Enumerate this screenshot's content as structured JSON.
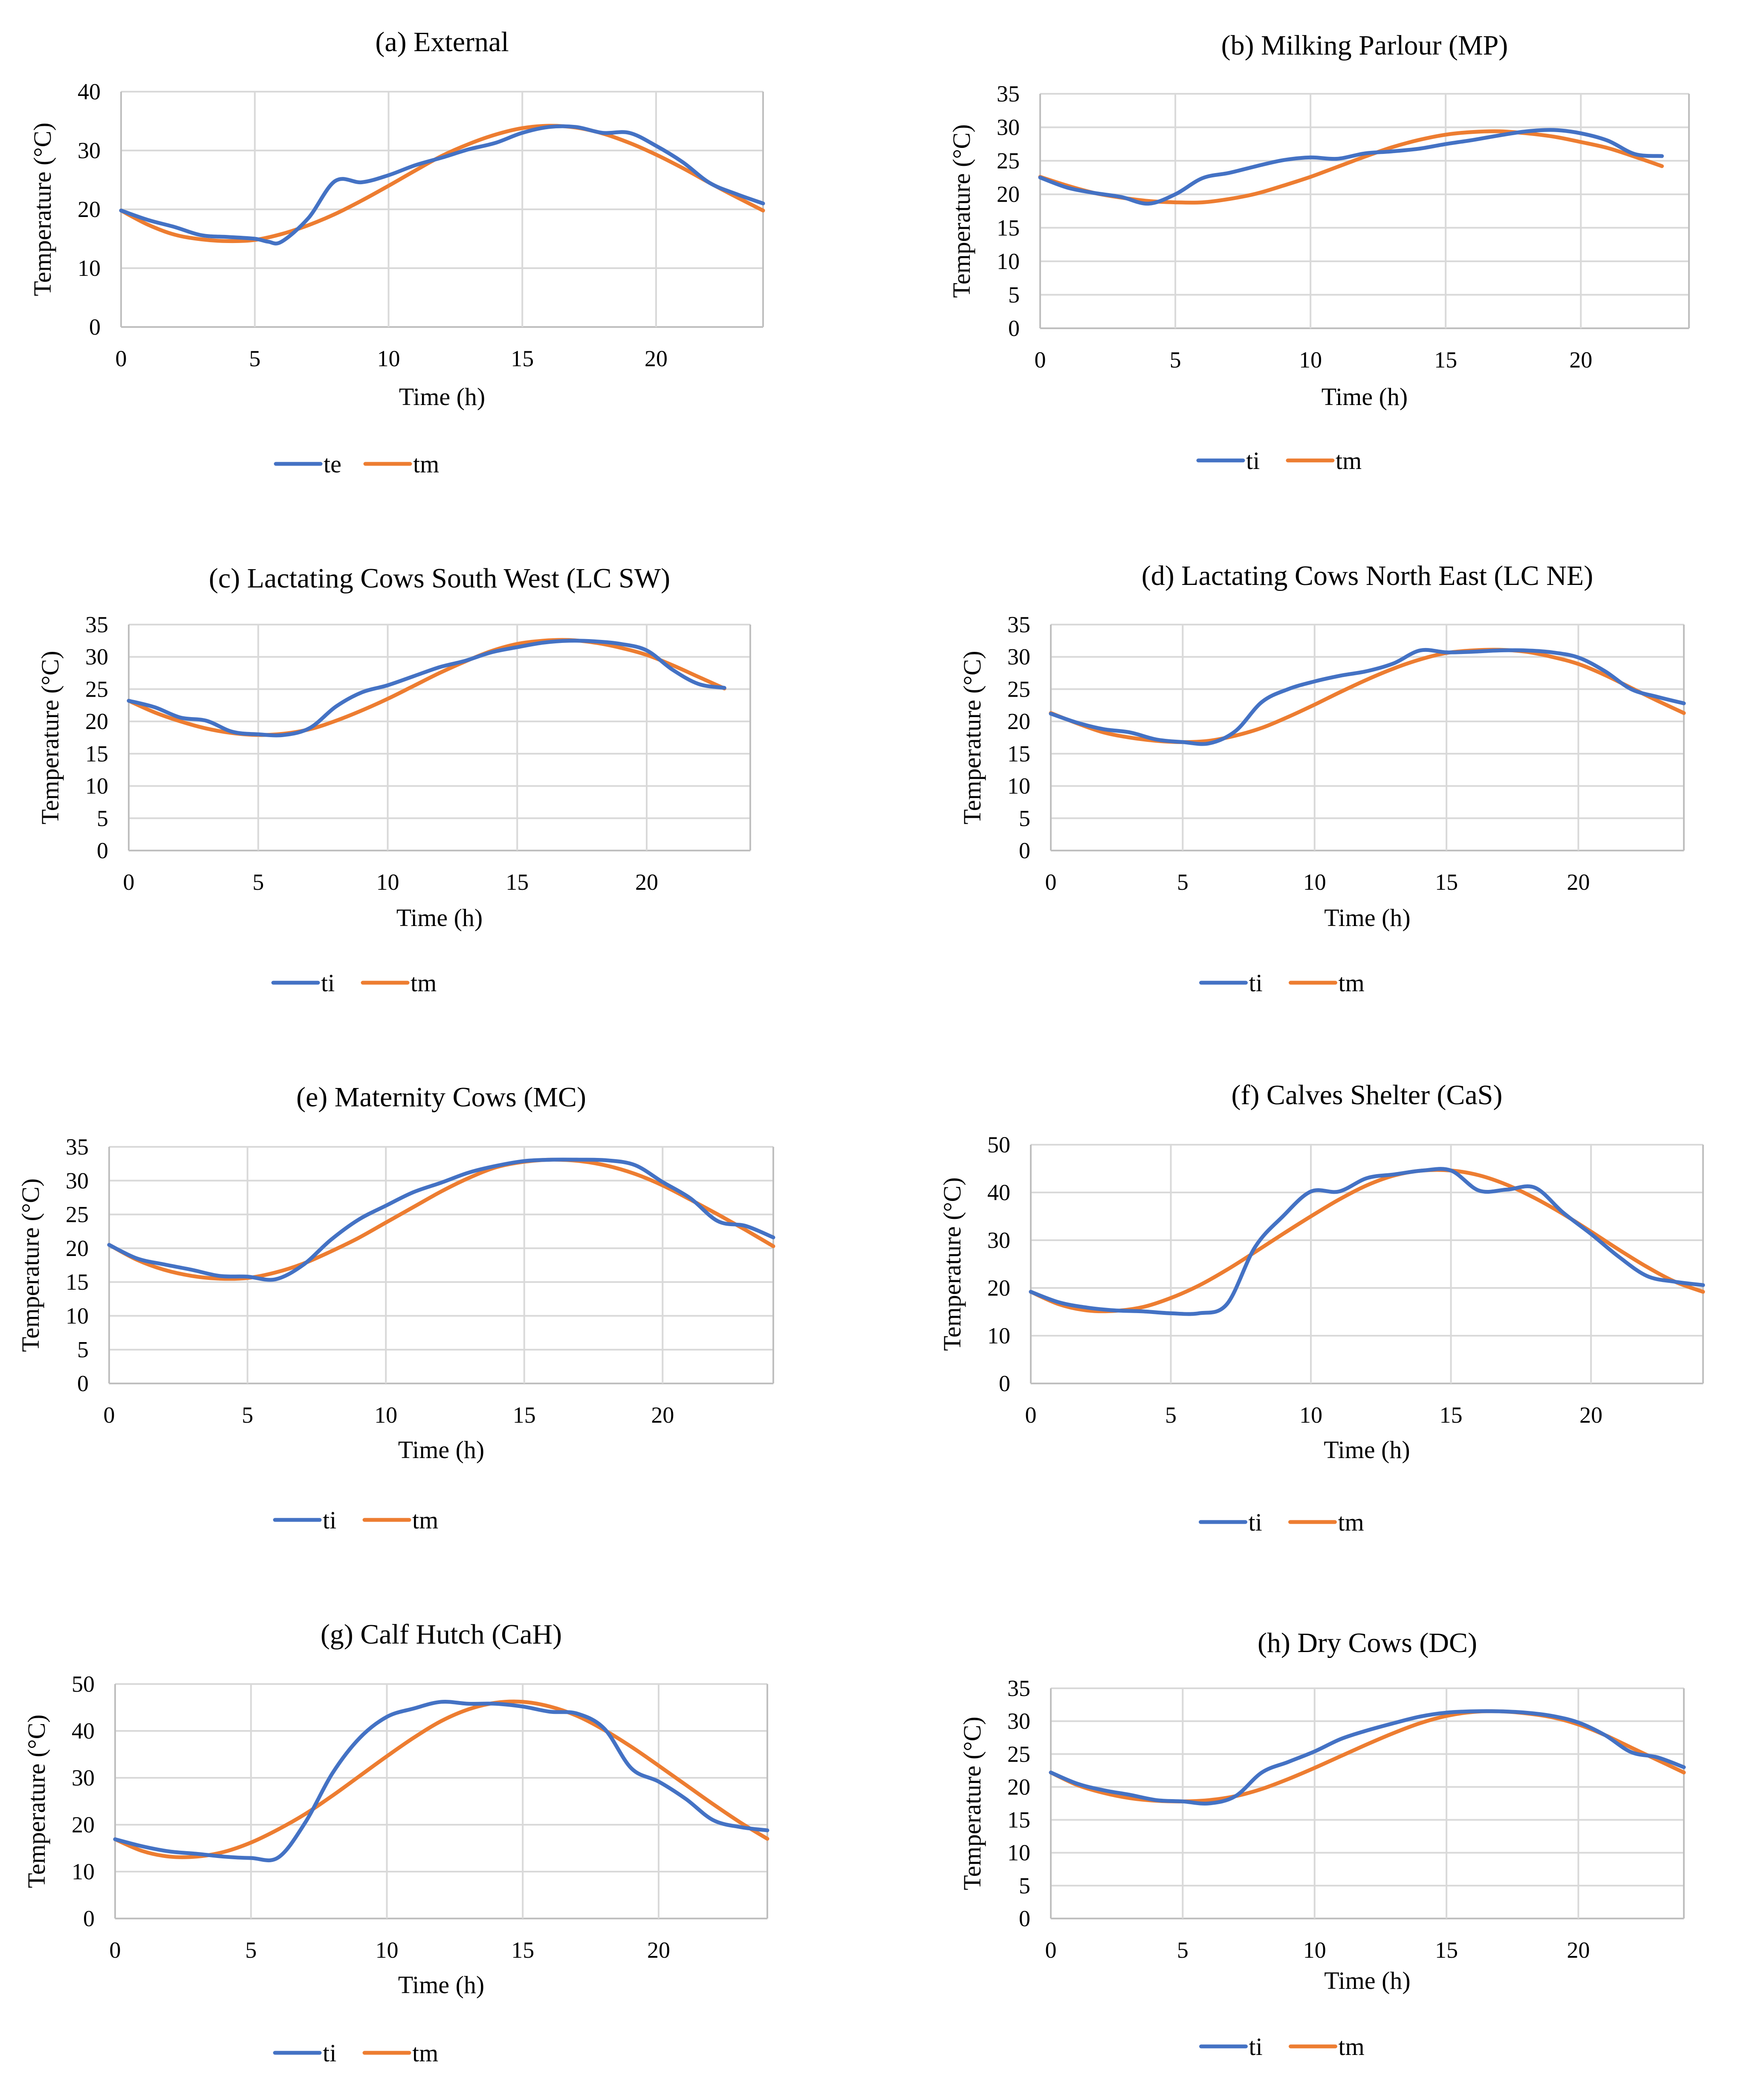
{
  "colors": {
    "blue": "#4472C4",
    "orange": "#ED7D31"
  },
  "chart_data": [
    {
      "id": "a",
      "type": "line",
      "title": "(a) External",
      "xlabel": "Time (h)",
      "ylabel": "Temperature (°C)",
      "xlim": [
        0,
        24
      ],
      "ylim": [
        0,
        40
      ],
      "xticks": [
        0,
        5,
        10,
        15,
        20
      ],
      "yticks": [
        0,
        10,
        20,
        30,
        40
      ],
      "series": [
        {
          "name": "te",
          "color": "#4472C4",
          "x": [
            0,
            1,
            2,
            3,
            4,
            5,
            5.5,
            6,
            7,
            8,
            9,
            10,
            11,
            12,
            13,
            14,
            15,
            16,
            17,
            18,
            19,
            20,
            21,
            22,
            23,
            24
          ],
          "y": [
            19.8,
            18.2,
            17,
            15.6,
            15.3,
            15,
            14.5,
            14.5,
            18.5,
            24.8,
            24.6,
            25.8,
            27.5,
            28.8,
            30.2,
            31.3,
            33,
            34,
            34,
            33,
            33,
            30.8,
            28,
            24.5,
            22.6,
            21
          ]
        },
        {
          "name": "tm",
          "color": "#ED7D31",
          "x": [
            0,
            1,
            2,
            3,
            4,
            5,
            6,
            7,
            8,
            9,
            10,
            11,
            12,
            13,
            14,
            15,
            16,
            17,
            18,
            19,
            20,
            21,
            22,
            23,
            24
          ],
          "y": [
            19.8,
            17.4,
            15.7,
            14.9,
            14.6,
            14.8,
            15.8,
            17.3,
            19.2,
            21.5,
            24,
            26.6,
            29.1,
            31.1,
            32.7,
            33.8,
            34.2,
            33.9,
            32.9,
            31.3,
            29.3,
            27,
            24.5,
            22.1,
            19.8
          ]
        }
      ]
    },
    {
      "id": "b",
      "type": "line",
      "title": "(b) Milking Parlour (MP)",
      "xlabel": "Time (h)",
      "ylabel": "Temperature (°C)",
      "xlim": [
        0,
        24
      ],
      "ylim": [
        0,
        35
      ],
      "xticks": [
        0,
        5,
        10,
        15,
        20
      ],
      "yticks": [
        0,
        5,
        10,
        15,
        20,
        25,
        30,
        35
      ],
      "series": [
        {
          "name": "ti",
          "color": "#4472C4",
          "x": [
            0,
            1,
            2,
            3,
            4,
            5,
            6,
            7,
            8,
            9,
            10,
            11,
            12,
            13,
            14,
            15,
            16,
            17,
            18,
            19,
            20,
            21,
            22,
            23
          ],
          "y": [
            22.5,
            21,
            20.2,
            19.6,
            18.6,
            20,
            22.4,
            23.2,
            24.2,
            25.1,
            25.5,
            25.3,
            26.1,
            26.4,
            26.8,
            27.5,
            28.1,
            28.8,
            29.4,
            29.6,
            29.1,
            28,
            26,
            25.7
          ]
        },
        {
          "name": "tm",
          "color": "#ED7D31",
          "x": [
            0,
            1,
            2,
            3,
            4,
            5,
            6,
            7,
            8,
            9,
            10,
            11,
            12,
            13,
            14,
            15,
            16,
            17,
            18,
            19,
            20,
            21,
            22,
            23
          ],
          "y": [
            22.6,
            21.3,
            20.2,
            19.5,
            19,
            18.8,
            18.8,
            19.3,
            20.1,
            21.3,
            22.6,
            24.1,
            25.6,
            27,
            28.1,
            28.9,
            29.3,
            29.4,
            29.1,
            28.6,
            27.8,
            26.9,
            25.6,
            24.2
          ]
        }
      ]
    },
    {
      "id": "c",
      "type": "line",
      "title": "(c) Lactating Cows South West (LC SW)",
      "xlabel": "Time (h)",
      "ylabel": "Temperature (°C)",
      "xlim": [
        0,
        24
      ],
      "ylim": [
        0,
        35
      ],
      "xticks": [
        0,
        5,
        10,
        15,
        20
      ],
      "yticks": [
        0,
        5,
        10,
        15,
        20,
        25,
        30,
        35
      ],
      "series": [
        {
          "name": "ti",
          "color": "#4472C4",
          "x": [
            0,
            1,
            2,
            3,
            4,
            5,
            6,
            7,
            8,
            9,
            10,
            11,
            12,
            13,
            14,
            15,
            16,
            17,
            18,
            19,
            20,
            21,
            22,
            23
          ],
          "y": [
            23.2,
            22.2,
            20.6,
            20.1,
            18.4,
            18,
            17.9,
            19,
            22.3,
            24.5,
            25.6,
            27,
            28.4,
            29.4,
            30.7,
            31.5,
            32.2,
            32.5,
            32.4,
            32,
            31,
            28,
            25.8,
            25.2
          ]
        },
        {
          "name": "tm",
          "color": "#ED7D31",
          "x": [
            0,
            1,
            2,
            3,
            4,
            5,
            6,
            7,
            8,
            9,
            10,
            11,
            12,
            13,
            14,
            15,
            16,
            17,
            18,
            19,
            20,
            21,
            22,
            23
          ],
          "y": [
            23.2,
            21.4,
            20,
            18.9,
            18.2,
            17.9,
            18.1,
            18.8,
            20.1,
            21.7,
            23.5,
            25.5,
            27.5,
            29.3,
            30.9,
            32,
            32.5,
            32.6,
            32.2,
            31.4,
            30.3,
            28.7,
            26.9,
            25.1
          ]
        }
      ]
    },
    {
      "id": "d",
      "type": "line",
      "title": "(d) Lactating Cows North East (LC NE)",
      "xlabel": "Time (h)",
      "ylabel": "Temperature (°C)",
      "xlim": [
        0,
        24
      ],
      "ylim": [
        0,
        35
      ],
      "xticks": [
        0,
        5,
        10,
        15,
        20
      ],
      "yticks": [
        0,
        5,
        10,
        15,
        20,
        25,
        30,
        35
      ],
      "series": [
        {
          "name": "ti",
          "color": "#4472C4",
          "x": [
            0,
            1,
            2,
            3,
            4,
            5,
            6,
            7,
            8,
            9,
            10,
            11,
            12,
            13,
            14,
            15,
            16,
            17,
            18,
            19,
            20,
            21,
            22,
            23,
            24
          ],
          "y": [
            21.2,
            19.8,
            18.8,
            18.3,
            17.2,
            16.8,
            16.6,
            18.5,
            23,
            25,
            26.2,
            27.1,
            27.8,
            29,
            31,
            30.7,
            30.8,
            31,
            31,
            30.7,
            29.9,
            27.8,
            25,
            23.8,
            22.8
          ]
        },
        {
          "name": "tm",
          "color": "#ED7D31",
          "x": [
            0,
            1,
            2,
            3,
            4,
            5,
            6,
            7,
            8,
            9,
            10,
            11,
            12,
            13,
            14,
            15,
            16,
            17,
            18,
            19,
            20,
            21,
            22,
            23,
            24
          ],
          "y": [
            21.3,
            19.7,
            18.3,
            17.5,
            17,
            16.8,
            17,
            17.8,
            19,
            20.7,
            22.6,
            24.6,
            26.5,
            28.2,
            29.6,
            30.6,
            31,
            31.1,
            30.8,
            30,
            28.9,
            27.2,
            25.2,
            23.2,
            21.3
          ]
        }
      ]
    },
    {
      "id": "e",
      "type": "line",
      "title": "(e) Maternity Cows (MC)",
      "xlabel": "Time (h)",
      "ylabel": "Temperature (°C)",
      "xlim": [
        0,
        24
      ],
      "ylim": [
        0,
        35
      ],
      "xticks": [
        0,
        5,
        10,
        15,
        20
      ],
      "yticks": [
        0,
        5,
        10,
        15,
        20,
        25,
        30,
        35
      ],
      "series": [
        {
          "name": "ti",
          "color": "#4472C4",
          "x": [
            0,
            1,
            2,
            3,
            4,
            5,
            6,
            7,
            8,
            9,
            10,
            11,
            12,
            13,
            14,
            15,
            16,
            17,
            18,
            19,
            20,
            21,
            22,
            23,
            24
          ],
          "y": [
            20.5,
            18.5,
            17.6,
            16.8,
            15.9,
            15.8,
            15.4,
            17.5,
            21.2,
            24.2,
            26.3,
            28.3,
            29.7,
            31.2,
            32.2,
            32.9,
            33.1,
            33.1,
            33,
            32.3,
            29.8,
            27.4,
            24,
            23.3,
            21.6
          ]
        },
        {
          "name": "tm",
          "color": "#ED7D31",
          "x": [
            0,
            1,
            2,
            3,
            4,
            5,
            6,
            7,
            8,
            9,
            10,
            11,
            12,
            13,
            14,
            15,
            16,
            17,
            18,
            19,
            20,
            21,
            22,
            23,
            24
          ],
          "y": [
            20.5,
            18.3,
            16.8,
            15.9,
            15.5,
            15.6,
            16.4,
            17.7,
            19.5,
            21.5,
            23.8,
            26.1,
            28.4,
            30.4,
            32,
            32.8,
            33.1,
            32.9,
            32.2,
            31,
            29.3,
            27.2,
            25,
            22.7,
            20.3
          ]
        }
      ]
    },
    {
      "id": "f",
      "type": "line",
      "title": "(f) Calves Shelter (CaS)",
      "xlabel": "Time (h)",
      "ylabel": "Temperature (°C)",
      "xlim": [
        0,
        24
      ],
      "ylim": [
        0,
        50
      ],
      "xticks": [
        0,
        5,
        10,
        15,
        20
      ],
      "yticks": [
        0,
        10,
        20,
        30,
        40,
        50
      ],
      "series": [
        {
          "name": "ti",
          "color": "#4472C4",
          "x": [
            0,
            1,
            2,
            3,
            4,
            5,
            6,
            7,
            8,
            9,
            10,
            11,
            12,
            13,
            14,
            15,
            16,
            17,
            18,
            19,
            20,
            21,
            22,
            23,
            24
          ],
          "y": [
            19.2,
            17,
            15.9,
            15.3,
            15.1,
            14.7,
            14.7,
            16.6,
            28.5,
            35,
            40.2,
            40.2,
            43,
            43.8,
            44.6,
            44.6,
            40.4,
            40.6,
            41,
            35.8,
            31.3,
            26.5,
            22.5,
            21.3,
            20.6
          ]
        },
        {
          "name": "tm",
          "color": "#ED7D31",
          "x": [
            0,
            1,
            2,
            3,
            4,
            5,
            6,
            7,
            8,
            9,
            10,
            11,
            12,
            13,
            14,
            15,
            16,
            17,
            18,
            19,
            20,
            21,
            22,
            23,
            24
          ],
          "y": [
            19.2,
            16.6,
            15.3,
            15.2,
            16,
            17.9,
            20.5,
            23.8,
            27.5,
            31.3,
            35,
            38.5,
            41.5,
            43.6,
            44.6,
            44.6,
            43.6,
            41.6,
            38.8,
            35.5,
            31.8,
            28,
            24.4,
            21.3,
            19.2
          ]
        }
      ]
    },
    {
      "id": "g",
      "type": "line",
      "title": "(g) Calf Hutch (CaH)",
      "xlabel": "Time (h)",
      "ylabel": "Temperature (°C)",
      "xlim": [
        0,
        24
      ],
      "ylim": [
        0,
        50
      ],
      "xticks": [
        0,
        5,
        10,
        15,
        20
      ],
      "yticks": [
        0,
        10,
        20,
        30,
        40,
        50
      ],
      "series": [
        {
          "name": "ti",
          "color": "#4472C4",
          "x": [
            0,
            1,
            2,
            3,
            4,
            5,
            6,
            7,
            8,
            9,
            10,
            11,
            12,
            13,
            14,
            15,
            16,
            17,
            18,
            19,
            20,
            21,
            22,
            23,
            24
          ],
          "y": [
            16.9,
            15.4,
            14.3,
            13.8,
            13.2,
            12.9,
            13,
            20.5,
            31,
            38.5,
            43,
            44.8,
            46.2,
            45.8,
            45.8,
            45.2,
            44.1,
            43.7,
            40.5,
            32,
            29.2,
            25.5,
            21,
            19.5,
            18.8
          ]
        },
        {
          "name": "tm",
          "color": "#ED7D31",
          "x": [
            0,
            1,
            2,
            3,
            4,
            5,
            6,
            7,
            8,
            9,
            10,
            11,
            12,
            13,
            14,
            15,
            16,
            17,
            18,
            19,
            20,
            21,
            22,
            23,
            24
          ],
          "y": [
            16.9,
            14.4,
            13.2,
            13.2,
            14.2,
            16.2,
            19,
            22.3,
            26.2,
            30.4,
            34.6,
            38.6,
            42.1,
            44.6,
            46,
            46.2,
            45.2,
            43.2,
            40.2,
            36.6,
            32.6,
            28.5,
            24.4,
            20.5,
            17
          ]
        }
      ]
    },
    {
      "id": "h",
      "type": "line",
      "title": "(h) Dry Cows (DC)",
      "xlabel": "Time (h)",
      "ylabel": "Temperature (°C)",
      "xlim": [
        0,
        24
      ],
      "ylim": [
        0,
        35
      ],
      "xticks": [
        0,
        5,
        10,
        15,
        20
      ],
      "yticks": [
        0,
        5,
        10,
        15,
        20,
        25,
        30,
        35
      ],
      "series": [
        {
          "name": "ti",
          "color": "#4472C4",
          "x": [
            0,
            1,
            2,
            3,
            4,
            5,
            6,
            7,
            8,
            9,
            10,
            11,
            12,
            13,
            14,
            15,
            16,
            17,
            18,
            19,
            20,
            21,
            22,
            23,
            24
          ],
          "y": [
            22.2,
            20.5,
            19.5,
            18.8,
            18,
            17.8,
            17.5,
            18.6,
            22.2,
            23.8,
            25.4,
            27.3,
            28.6,
            29.7,
            30.7,
            31.3,
            31.5,
            31.5,
            31.3,
            30.8,
            29.8,
            27.9,
            25.3,
            24.5,
            23
          ]
        },
        {
          "name": "tm",
          "color": "#ED7D31",
          "x": [
            0,
            1,
            2,
            3,
            4,
            5,
            6,
            7,
            8,
            9,
            10,
            11,
            12,
            13,
            14,
            15,
            16,
            17,
            18,
            19,
            20,
            21,
            22,
            23,
            24
          ],
          "y": [
            22.2,
            20.3,
            19.1,
            18.3,
            17.9,
            17.8,
            18,
            18.6,
            19.7,
            21.2,
            22.9,
            24.7,
            26.5,
            28.2,
            29.7,
            30.8,
            31.4,
            31.5,
            31.2,
            30.6,
            29.5,
            27.9,
            26,
            24.1,
            22.2
          ]
        }
      ]
    }
  ]
}
